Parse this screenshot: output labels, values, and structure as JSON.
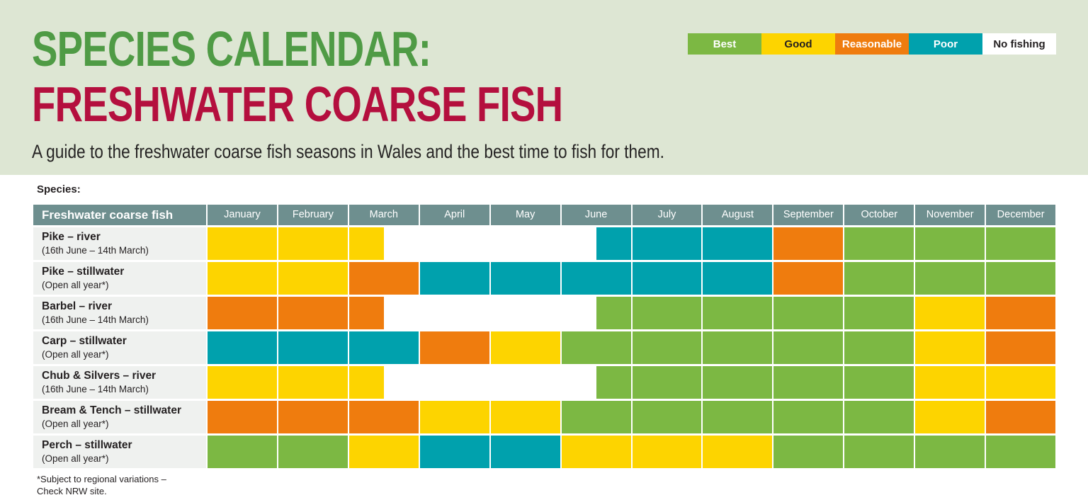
{
  "page": {
    "title_line1": "SPECIES CALENDAR:",
    "title_line2": "FRESHWATER COARSE FISH",
    "subtitle": "A guide to the freshwater coarse fish seasons in Wales and the best time to fish for them.",
    "species_caption": "Species:",
    "footnote_line1": "*Subject to regional variations –",
    "footnote_line2": "Check NRW site."
  },
  "colors": {
    "best": "#7cb843",
    "good": "#fdd400",
    "reasonable": "#ef7c0e",
    "poor": "#00a1ad",
    "none": "#ffffff",
    "header_bg": "#6e8f8f",
    "banner_bg": "#dde6d3",
    "label_bg": "#eff1ef",
    "title_green": "#4f9b45",
    "title_red": "#b40f3e"
  },
  "legend": {
    "items": [
      {
        "key": "best",
        "label": "Best",
        "text_color": "#ffffff"
      },
      {
        "key": "good",
        "label": "Good",
        "text_color": "#231f20"
      },
      {
        "key": "reasonable",
        "label": "Reasonable",
        "text_color": "#ffffff"
      },
      {
        "key": "poor",
        "label": "Poor",
        "text_color": "#ffffff"
      },
      {
        "key": "none",
        "label": "No fishing",
        "text_color": "#231f20"
      }
    ]
  },
  "chart_data": {
    "type": "table",
    "title": "Species calendar: freshwater coarse fish",
    "subtitle": "A guide to the freshwater coarse fish seasons in Wales and the best time to fish for them.",
    "value_scale": [
      "Best",
      "Good",
      "Reasonable",
      "Poor",
      "No fishing"
    ],
    "first_column_header": "Freshwater coarse fish",
    "months": [
      "January",
      "February",
      "March",
      "April",
      "May",
      "June",
      "July",
      "August",
      "September",
      "October",
      "November",
      "December"
    ],
    "split_cell_note": "cells written as 'a|b' are half-month splits (left half a, right half b) matching 14th March close / 16th June open season dates",
    "rows": [
      {
        "species": "Pike – river",
        "season": "(16th June – 14th March)",
        "cells": [
          "good",
          "good",
          "good|none",
          "none",
          "none",
          "none|poor",
          "poor",
          "poor",
          "reasonable",
          "best",
          "best",
          "best"
        ]
      },
      {
        "species": "Pike – stillwater",
        "season": "(Open all year*)",
        "cells": [
          "good",
          "good",
          "reasonable",
          "poor",
          "poor",
          "poor",
          "poor",
          "poor",
          "reasonable",
          "best",
          "best",
          "best"
        ]
      },
      {
        "species": "Barbel – river",
        "season": "(16th June – 14th March)",
        "cells": [
          "reasonable",
          "reasonable",
          "reasonable|none",
          "none",
          "none",
          "none|best",
          "best",
          "best",
          "best",
          "best",
          "good",
          "reasonable"
        ]
      },
      {
        "species": "Carp – stillwater",
        "season": "(Open all year*)",
        "cells": [
          "poor",
          "poor",
          "poor",
          "reasonable",
          "good",
          "best",
          "best",
          "best",
          "best",
          "best",
          "good",
          "reasonable"
        ]
      },
      {
        "species": "Chub & Silvers – river",
        "season": "(16th June – 14th March)",
        "cells": [
          "good",
          "good",
          "good|none",
          "none",
          "none",
          "none|best",
          "best",
          "best",
          "best",
          "best",
          "good",
          "good"
        ]
      },
      {
        "species": "Bream & Tench – stillwater",
        "season": "(Open all year*)",
        "cells": [
          "reasonable",
          "reasonable",
          "reasonable",
          "good",
          "good",
          "best",
          "best",
          "best",
          "best",
          "best",
          "good",
          "reasonable"
        ]
      },
      {
        "species": "Perch – stillwater",
        "season": "(Open all year*)",
        "cells": [
          "best",
          "best",
          "good",
          "poor",
          "poor",
          "good",
          "good",
          "good",
          "best",
          "best",
          "best",
          "best"
        ]
      }
    ]
  }
}
